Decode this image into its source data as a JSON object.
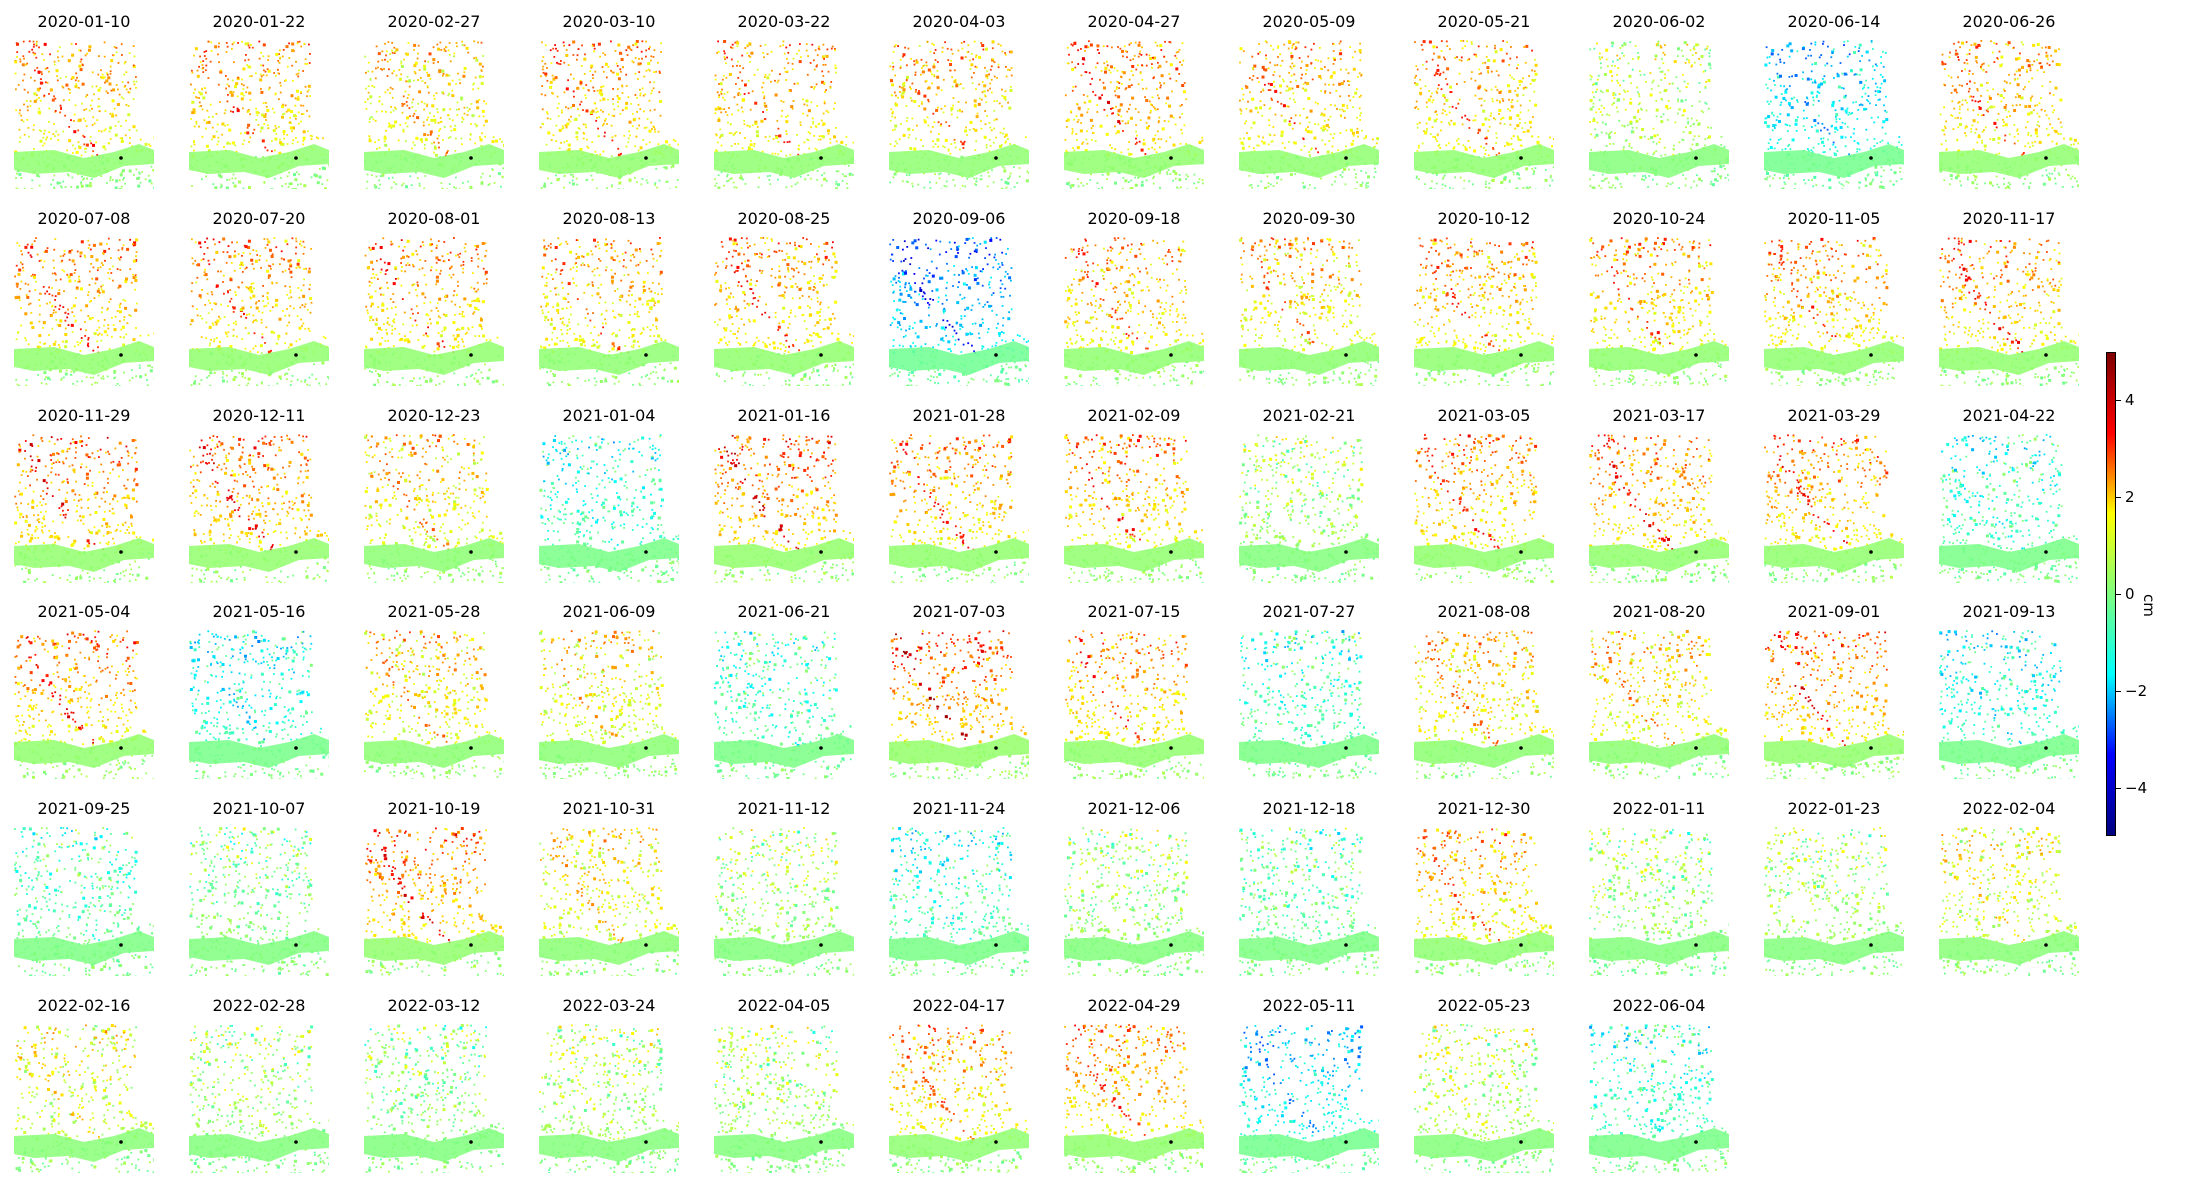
{
  "chart_data": {
    "type": "heatmap",
    "title": "",
    "panels": [
      "2020-01-10",
      "2020-01-22",
      "2020-02-27",
      "2020-03-10",
      "2020-03-22",
      "2020-04-03",
      "2020-04-27",
      "2020-05-09",
      "2020-05-21",
      "2020-06-02",
      "2020-06-14",
      "2020-06-26",
      "2020-07-08",
      "2020-07-20",
      "2020-08-01",
      "2020-08-13",
      "2020-08-25",
      "2020-09-06",
      "2020-09-18",
      "2020-09-30",
      "2020-10-12",
      "2020-10-24",
      "2020-11-05",
      "2020-11-17",
      "2020-11-29",
      "2020-12-11",
      "2020-12-23",
      "2021-01-04",
      "2021-01-16",
      "2021-01-28",
      "2021-02-09",
      "2021-02-21",
      "2021-03-05",
      "2021-03-17",
      "2021-03-29",
      "2021-04-22",
      "2021-05-04",
      "2021-05-16",
      "2021-05-28",
      "2021-06-09",
      "2021-06-21",
      "2021-07-03",
      "2021-07-15",
      "2021-07-27",
      "2021-08-08",
      "2021-08-20",
      "2021-09-01",
      "2021-09-13",
      "2021-09-25",
      "2021-10-07",
      "2021-10-19",
      "2021-10-31",
      "2021-11-12",
      "2021-11-24",
      "2021-12-06",
      "2021-12-18",
      "2021-12-30",
      "2022-01-11",
      "2022-01-23",
      "2022-02-04",
      "2022-02-16",
      "2022-02-28",
      "2022-03-12",
      "2022-03-24",
      "2022-04-05",
      "2022-04-17",
      "2022-04-29",
      "2022-05-11",
      "2022-05-23",
      "2022-06-04"
    ],
    "colorbar": {
      "label": "cm",
      "range": [
        -5,
        5
      ],
      "ticks": [
        4,
        2,
        0,
        -2,
        -4
      ],
      "tick_labels": [
        "4",
        "2",
        "0",
        "−2",
        "−4"
      ],
      "colormap": "jet",
      "colors": [
        "#00007f",
        "#0000ff",
        "#00ffff",
        "#7fff7f",
        "#ffff00",
        "#ff0000",
        "#7f0000"
      ]
    },
    "mean_displacement_cm": [
      1.5,
      1.5,
      1.2,
      1.6,
      1.5,
      1.4,
      1.7,
      1.5,
      1.5,
      0.5,
      -1.2,
      1.5,
      1.6,
      1.6,
      1.6,
      1.4,
      1.6,
      -1.8,
      1.5,
      1.3,
      1.5,
      1.5,
      1.5,
      1.6,
      1.8,
      1.8,
      1.2,
      -0.7,
      1.9,
      1.6,
      1.6,
      0.3,
      1.6,
      1.7,
      1.7,
      -0.6,
      1.7,
      -0.8,
      1.2,
      1.0,
      -0.5,
      2.0,
      1.6,
      -0.5,
      1.3,
      1.2,
      1.8,
      -0.8,
      -0.3,
      0.0,
      1.8,
      1.0,
      0.3,
      -0.6,
      0.2,
      -0.2,
      1.4,
      0.2,
      0.3,
      0.8,
      0.8,
      0.3,
      0.1,
      0.4,
      0.3,
      1.4,
      1.6,
      -1.2,
      0.5,
      -0.6
    ],
    "grid": false
  }
}
